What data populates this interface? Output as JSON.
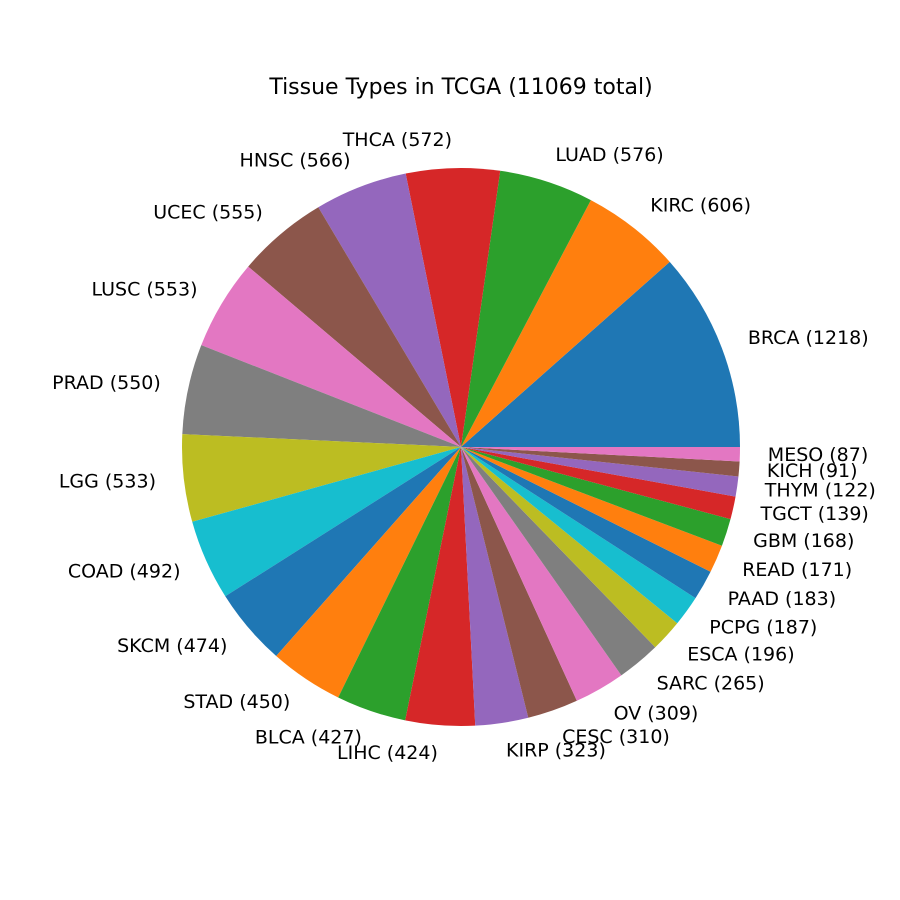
{
  "chart_data": {
    "type": "pie",
    "title": "Tissue Types in TCGA (11069 total)",
    "start_angle_deg": 0,
    "direction": "counterclockwise",
    "labels": [
      "BRCA (1218)",
      "KIRC (606)",
      "LUAD (576)",
      "THCA (572)",
      "HNSC (566)",
      "UCEC (555)",
      "LUSC (553)",
      "PRAD (550)",
      "LGG (533)",
      "COAD (492)",
      "SKCM (474)",
      "STAD (450)",
      "BLCA (427)",
      "LIHC (424)",
      "KIRP (323)",
      "CESC (310)",
      "OV (309)",
      "SARC (265)",
      "ESCA (196)",
      "PCPG (187)",
      "PAAD (183)",
      "READ (171)",
      "GBM (168)",
      "TGCT (139)",
      "THYM (122)",
      "KICH (91)",
      "MESO (87)"
    ],
    "values": [
      1218,
      606,
      576,
      572,
      566,
      555,
      553,
      550,
      533,
      492,
      474,
      450,
      427,
      424,
      323,
      310,
      309,
      265,
      196,
      187,
      183,
      171,
      168,
      139,
      122,
      91,
      87
    ],
    "colors": [
      "#1f77b4",
      "#ff7f0e",
      "#2ca02c",
      "#d62728",
      "#9467bd",
      "#8c564b",
      "#e377c2",
      "#7f7f7f",
      "#bcbd22",
      "#17becf"
    ]
  }
}
